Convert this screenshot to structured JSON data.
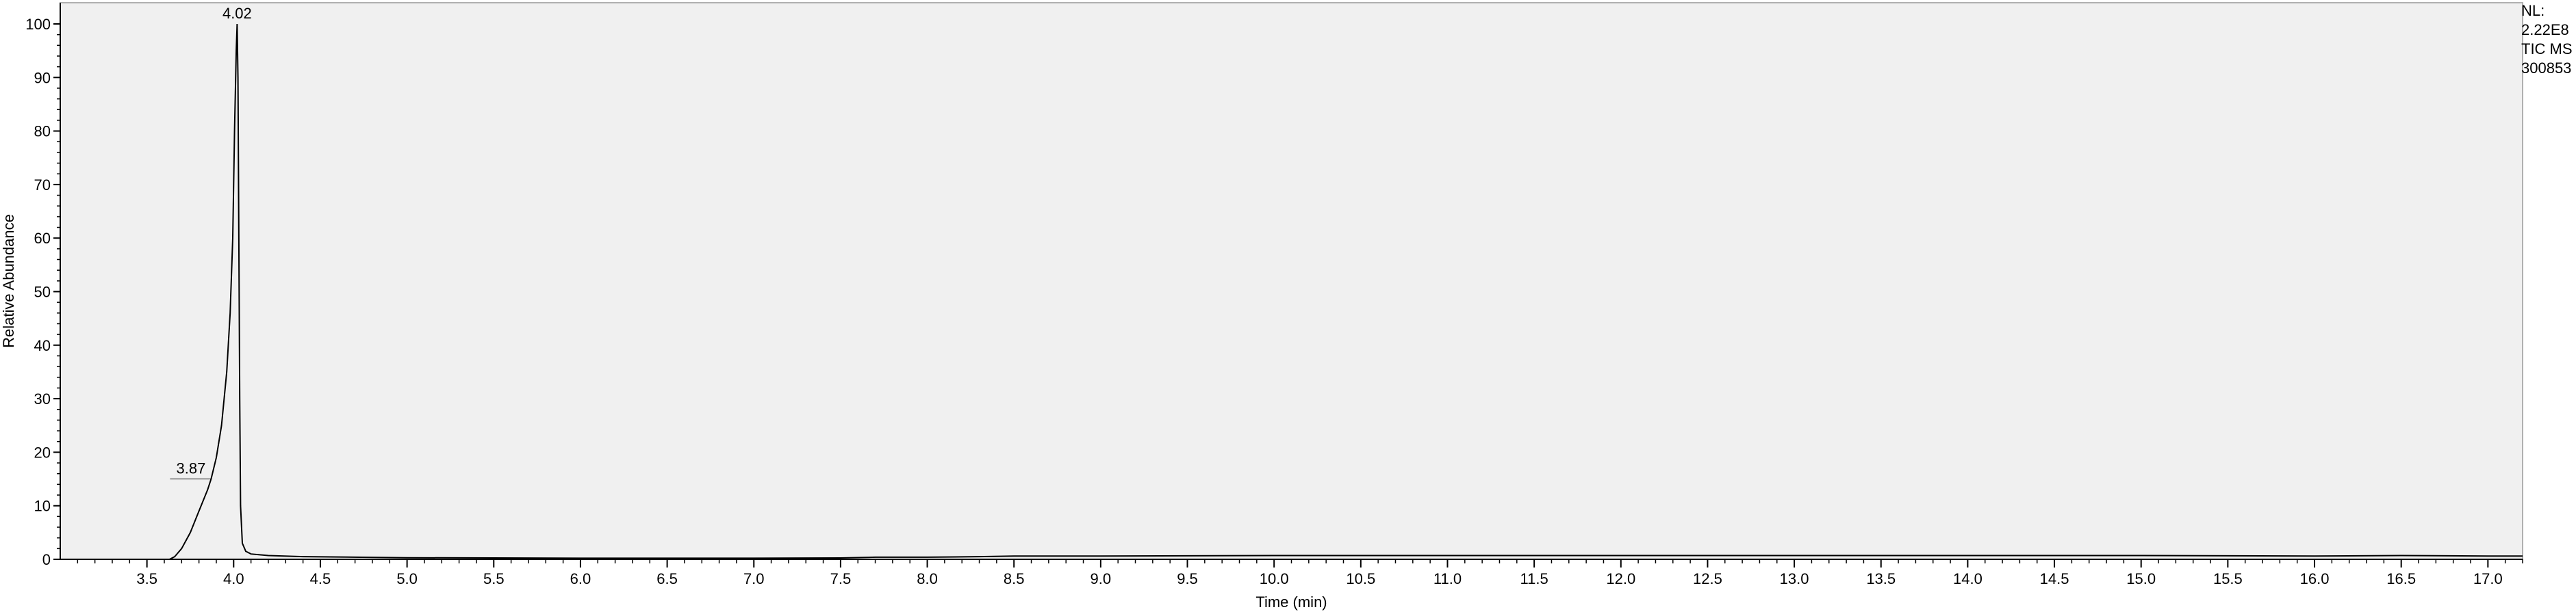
{
  "info_block": {
    "nl_label": "NL:",
    "nl_value": "2.22E8",
    "scan_filter": "TIC  MS",
    "sample_id": "300853"
  },
  "chart_data": {
    "type": "line",
    "title": "",
    "xlabel": "Time (min)",
    "ylabel": "Relative Abundance",
    "xlim": [
      3.0,
      17.2
    ],
    "ylim": [
      0,
      100
    ],
    "x_ticks": [
      3.5,
      4.0,
      4.5,
      5.0,
      5.5,
      6.0,
      6.5,
      7.0,
      7.5,
      8.0,
      8.5,
      9.0,
      9.5,
      10.0,
      10.5,
      11.0,
      11.5,
      12.0,
      12.5,
      13.0,
      13.5,
      14.0,
      14.5,
      15.0,
      15.5,
      16.0,
      16.5,
      17.0
    ],
    "x_tick_labels": [
      "3.5",
      "4.0",
      "4.5",
      "5.0",
      "5.5",
      "6.0",
      "6.5",
      "7.0",
      "7.5",
      "8.0",
      "8.5",
      "9.0",
      "9.5",
      "10.0",
      "10.5",
      "11.0",
      "11.5",
      "12.0",
      "12.5",
      "13.0",
      "13.5",
      "14.0",
      "14.5",
      "15.0",
      "15.5",
      "16.0",
      "16.5",
      "17.0"
    ],
    "y_ticks": [
      0,
      10,
      20,
      30,
      40,
      50,
      60,
      70,
      80,
      90,
      100
    ],
    "y_tick_labels": [
      "0",
      "10",
      "20",
      "30",
      "40",
      "50",
      "60",
      "70",
      "80",
      "90",
      "100"
    ],
    "grid": false,
    "plot_background": "#f0f0f0",
    "line_color": "#000000",
    "series": [
      {
        "x": [
          3.0,
          3.5,
          3.63,
          3.66,
          3.7,
          3.75,
          3.8,
          3.85,
          3.87,
          3.9,
          3.93,
          3.96,
          3.98,
          3.995,
          4.005,
          4.015,
          4.02,
          4.025,
          4.03,
          4.035,
          4.04,
          4.05,
          4.07,
          4.1,
          4.2,
          4.4,
          4.7,
          5.0,
          6.0,
          7.0,
          7.5,
          7.7,
          8.0,
          8.3,
          8.5,
          9.0,
          10.0,
          11.0,
          12.0,
          13.0,
          14.0,
          15.0,
          16.0,
          16.5,
          17.0,
          17.2
        ],
        "y": [
          0,
          0,
          0,
          0.5,
          2,
          5,
          9,
          13,
          15,
          19,
          25,
          35,
          46,
          60,
          80,
          95,
          100,
          90,
          60,
          30,
          10,
          3,
          1.5,
          1.0,
          0.7,
          0.5,
          0.4,
          0.3,
          0.2,
          0.2,
          0.25,
          0.4,
          0.4,
          0.5,
          0.6,
          0.6,
          0.7,
          0.7,
          0.7,
          0.7,
          0.7,
          0.7,
          0.6,
          0.7,
          0.6,
          0.6
        ]
      }
    ],
    "peak_labels": [
      {
        "x": 4.02,
        "y": 100,
        "label": "4.02"
      },
      {
        "x": 3.87,
        "y": 15,
        "label": "3.87"
      }
    ]
  }
}
